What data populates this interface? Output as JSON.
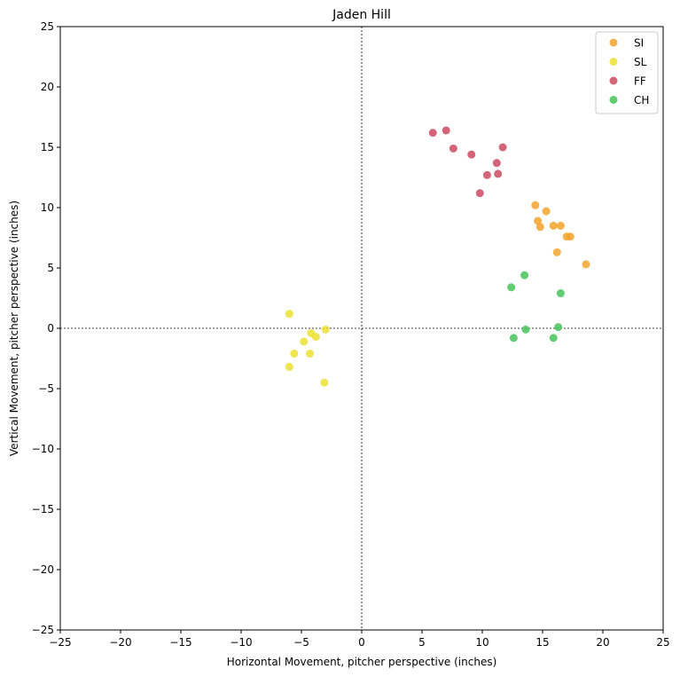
{
  "chart_data": {
    "type": "scatter",
    "title": "Jaden Hill",
    "xlabel": "Horizontal Movement, pitcher perspective (inches)",
    "ylabel": "Vertical Movement, pitcher perspective (inches)",
    "xlim": [
      -25,
      25
    ],
    "ylim": [
      -25,
      25
    ],
    "xticks": [
      -25,
      -20,
      -15,
      -10,
      -5,
      0,
      5,
      10,
      15,
      20,
      25
    ],
    "yticks": [
      -25,
      -20,
      -15,
      -10,
      -5,
      0,
      5,
      10,
      15,
      20,
      25
    ],
    "grid": false,
    "reference_lines": {
      "x": 0,
      "y": 0,
      "style": "dashed"
    },
    "legend": "top-right",
    "series": [
      {
        "name": "SI",
        "color": "#f5a32a",
        "points": [
          [
            14.4,
            10.2
          ],
          [
            15.3,
            9.7
          ],
          [
            14.6,
            8.9
          ],
          [
            14.8,
            8.4
          ],
          [
            15.9,
            8.5
          ],
          [
            16.5,
            8.5
          ],
          [
            17.0,
            7.6
          ],
          [
            17.3,
            7.6
          ],
          [
            16.2,
            6.3
          ],
          [
            18.6,
            5.3
          ]
        ]
      },
      {
        "name": "SL",
        "color": "#ebe131",
        "points": [
          [
            -6.0,
            1.2
          ],
          [
            -3.0,
            -0.1
          ],
          [
            -4.2,
            -0.4
          ],
          [
            -3.8,
            -0.7
          ],
          [
            -4.8,
            -1.1
          ],
          [
            -5.6,
            -2.1
          ],
          [
            -4.3,
            -2.1
          ],
          [
            -6.0,
            -3.2
          ],
          [
            -3.1,
            -4.5
          ]
        ]
      },
      {
        "name": "FF",
        "color": "#cd4a60",
        "points": [
          [
            5.9,
            16.2
          ],
          [
            7.0,
            16.4
          ],
          [
            7.6,
            14.9
          ],
          [
            9.1,
            14.4
          ],
          [
            11.7,
            15.0
          ],
          [
            11.2,
            13.7
          ],
          [
            11.3,
            12.8
          ],
          [
            10.4,
            12.7
          ],
          [
            9.8,
            11.2
          ]
        ]
      },
      {
        "name": "CH",
        "color": "#46c35a",
        "points": [
          [
            13.5,
            4.4
          ],
          [
            12.4,
            3.4
          ],
          [
            16.5,
            2.9
          ],
          [
            16.3,
            0.1
          ],
          [
            13.6,
            -0.1
          ],
          [
            12.6,
            -0.8
          ],
          [
            15.9,
            -0.8
          ]
        ]
      }
    ]
  }
}
